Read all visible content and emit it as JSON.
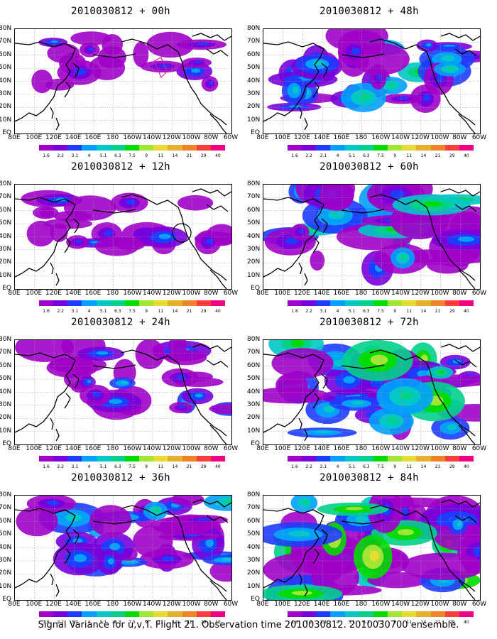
{
  "colors": {
    "levels": [
      "#a000c8",
      "#7800dc",
      "#1e3cff",
      "#00a0ff",
      "#00c8c8",
      "#00d28c",
      "#00dc00",
      "#a0e632",
      "#e6dc32",
      "#e6af2d",
      "#f08228",
      "#fa3c3c",
      "#f00082"
    ],
    "coastline": "#000000",
    "grid": "#9a9a9a"
  },
  "panels": [
    {
      "title": "2010030812 + 00h",
      "intensity": 0.15,
      "circle": false,
      "box": true
    },
    {
      "title": "2010030812 + 48h",
      "intensity": 0.55,
      "circle": false,
      "box": false
    },
    {
      "title": "2010030812 + 12h",
      "intensity": 0.25,
      "circle": true,
      "box": false
    },
    {
      "title": "2010030812 + 60h",
      "intensity": 0.65,
      "circle": false,
      "box": false
    },
    {
      "title": "2010030812 + 24h",
      "intensity": 0.35,
      "circle": false,
      "box": false
    },
    {
      "title": "2010030812 + 72h",
      "intensity": 0.75,
      "circle": false,
      "box": false
    },
    {
      "title": "2010030812 + 36h",
      "intensity": 0.45,
      "circle": false,
      "box": false
    },
    {
      "title": "2010030812 + 84h",
      "intensity": 0.85,
      "circle": false,
      "box": false
    }
  ],
  "lat_labels": [
    "80N",
    "70N",
    "60N",
    "50N",
    "40N",
    "30N",
    "20N",
    "10N",
    "EQ"
  ],
  "lon_labels": [
    "80E",
    "100E",
    "120E",
    "140E",
    "160E",
    "180",
    "160W",
    "140W",
    "120W",
    "100W",
    "80W",
    "60W"
  ],
  "colorbar_labels": [
    "1.6",
    "2.2",
    "3.1",
    "4",
    "5.1",
    "6.3",
    "7.5",
    "9",
    "11",
    "14",
    "21",
    "29",
    "40"
  ],
  "footer": "Signal Variance for u,v,T. Flight 21. Observation time 2010030812. 2010030700 ensemble."
}
